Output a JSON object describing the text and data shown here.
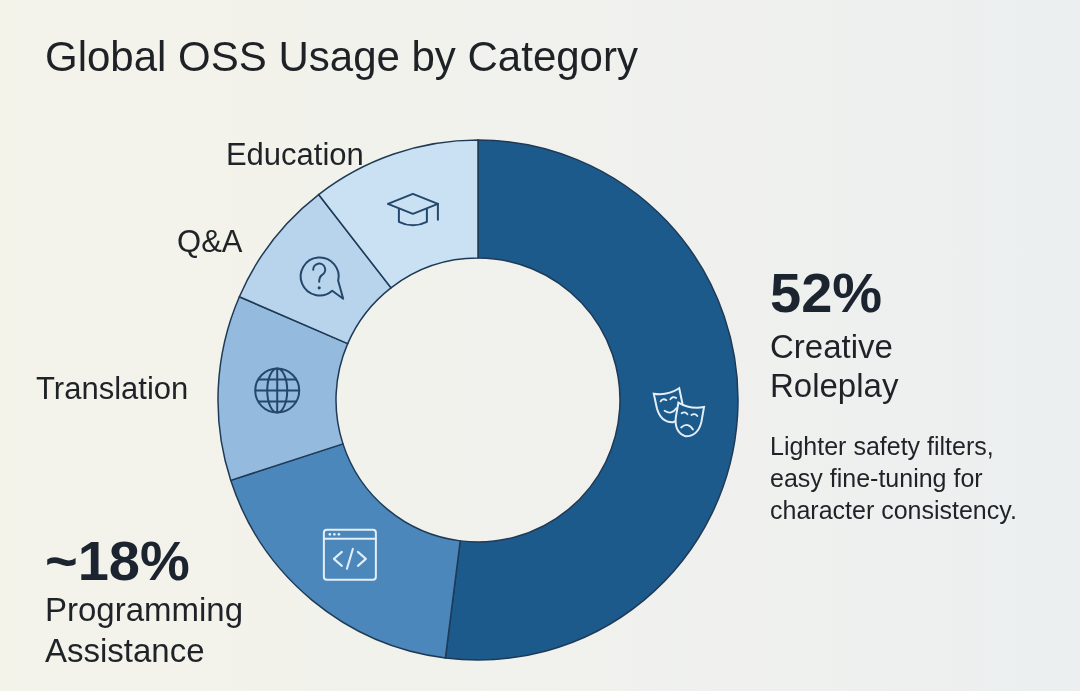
{
  "chart_data": {
    "type": "donut",
    "title": "Global OSS Usage by Category",
    "categories": [
      "Creative Roleplay",
      "Programming Assistance",
      "Translation",
      "Q&A",
      "Education"
    ],
    "values": [
      52,
      18,
      11.5,
      8,
      10.5
    ],
    "colors": [
      "#1d5a8c",
      "#4c87bb",
      "#94bbdd",
      "#b7d4ec",
      "#c9e1f3"
    ],
    "value_labels": [
      "52%",
      "~18%",
      null,
      null,
      null
    ],
    "annotations": [
      "Lighter safety filters, easy fine-tuning for character consistency."
    ]
  }
}
